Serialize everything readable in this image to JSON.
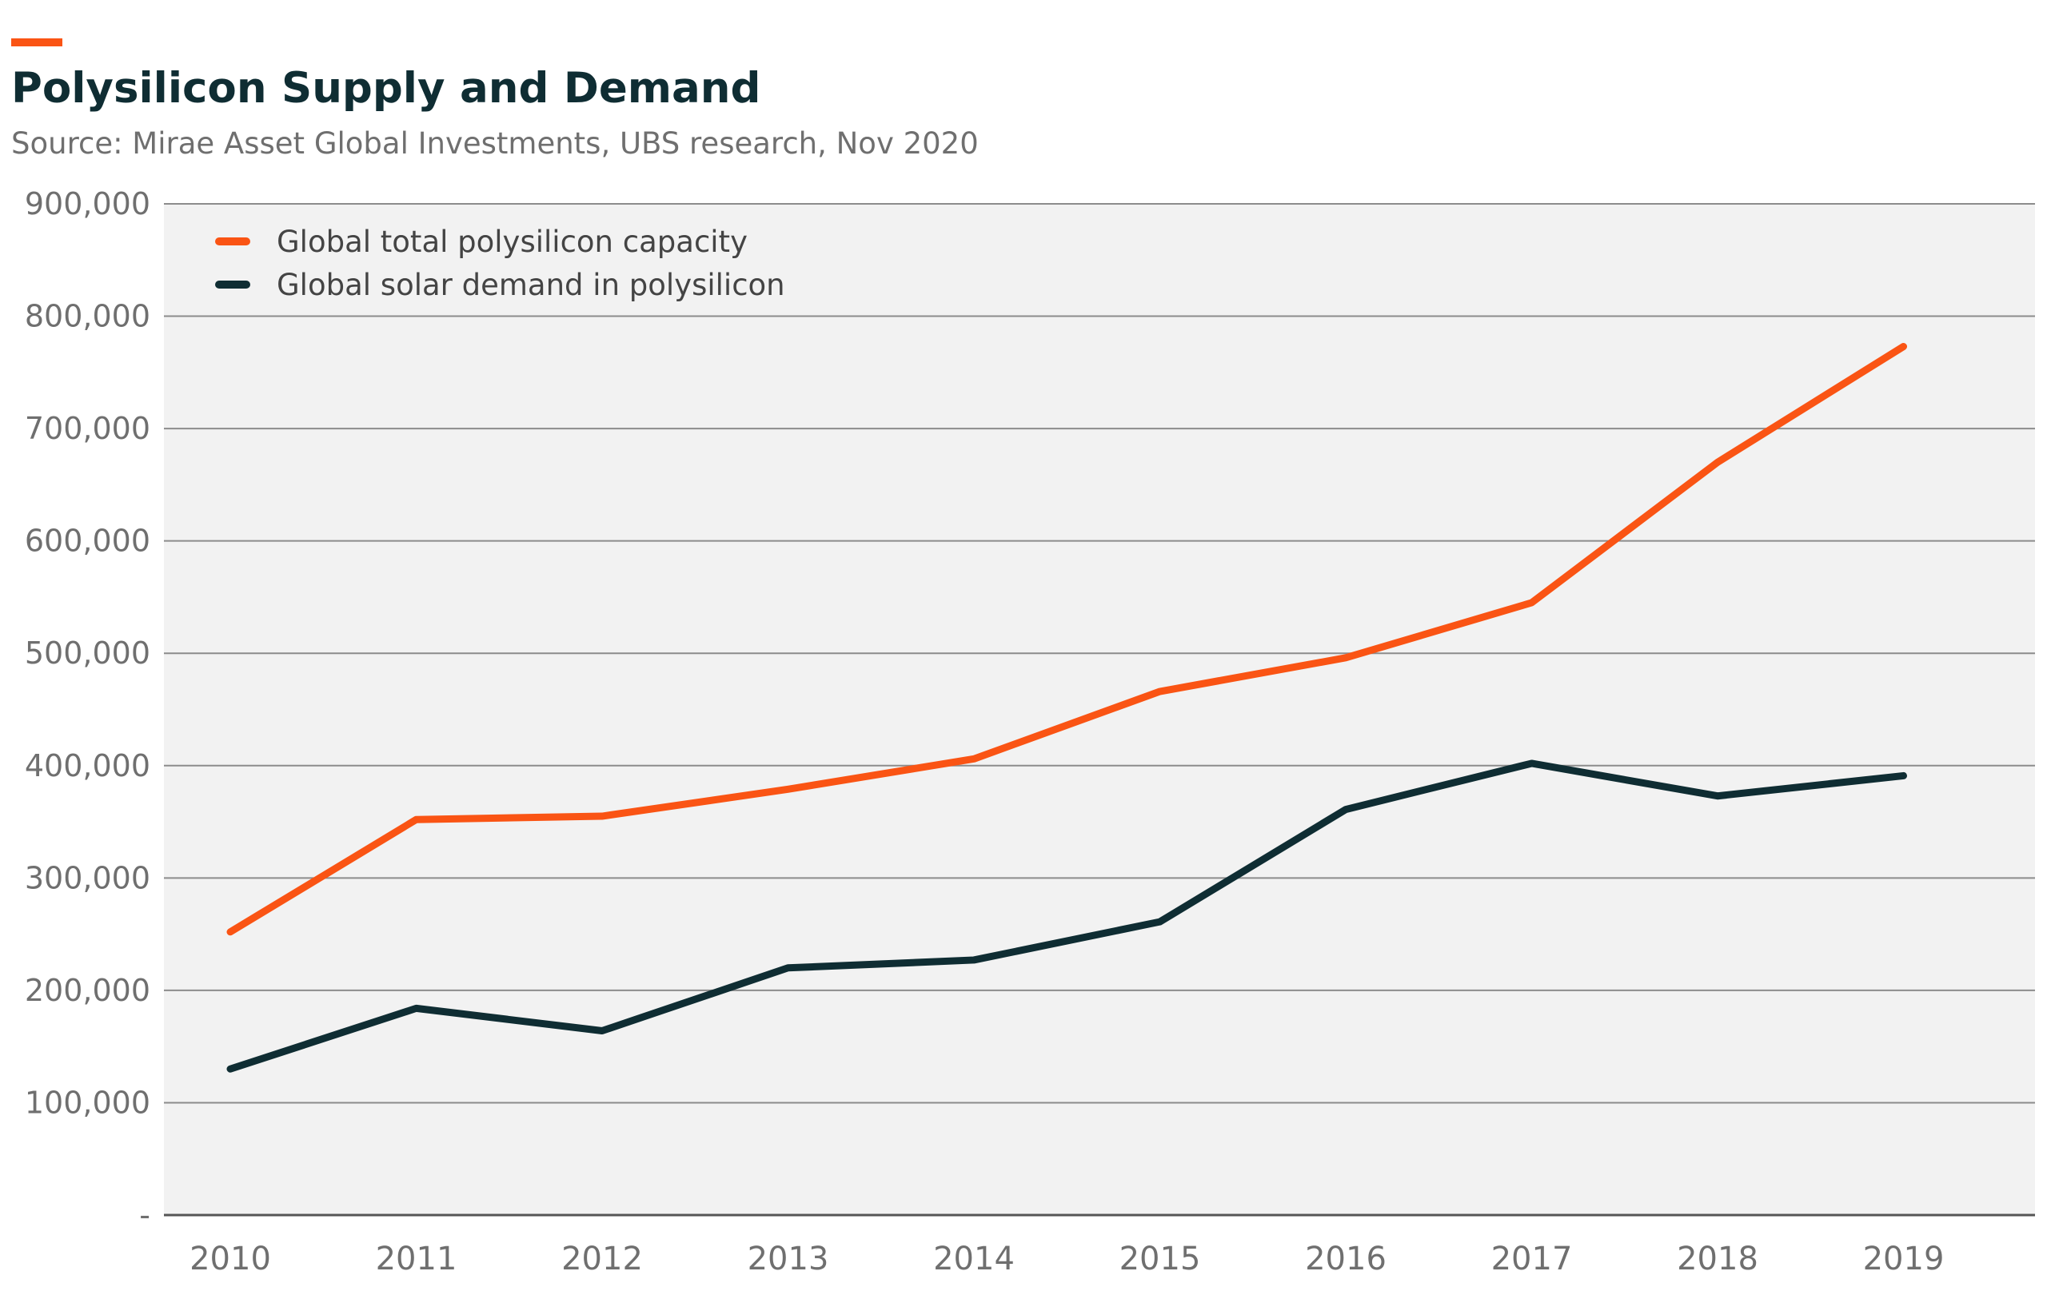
{
  "header": {
    "title": "Polysilicon Supply and Demand",
    "subtitle": "Source: Mirae Asset Global Investments, UBS research, Nov 2020"
  },
  "colors": {
    "accent": "#fa5414",
    "dark": "#0f2d33",
    "plot_background": "#f2f2f2",
    "gridline": "#8c8c8c",
    "tick_text": "#6f6f6f"
  },
  "chart_data": {
    "type": "line",
    "title": "Polysilicon Supply and Demand",
    "subtitle": "Source: Mirae Asset Global Investments, UBS research, Nov 2020",
    "xlabel": "",
    "ylabel": "",
    "categories": [
      "2010",
      "2011",
      "2012",
      "2013",
      "2014",
      "2015",
      "2016",
      "2017",
      "2018",
      "2019"
    ],
    "ylim": [
      0,
      900000
    ],
    "yticks": [
      0,
      100000,
      200000,
      300000,
      400000,
      500000,
      600000,
      700000,
      800000,
      900000
    ],
    "ytick_labels": [
      "-",
      "100,000",
      "200,000",
      "300,000",
      "400,000",
      "500,000",
      "600,000",
      "700,000",
      "800,000",
      "900,000"
    ],
    "grid": true,
    "legend_position": "top-left",
    "series": [
      {
        "name": "Global total polysilicon capacity",
        "color": "#fa5414",
        "values": [
          252000,
          352000,
          355000,
          379000,
          406000,
          466000,
          496000,
          545000,
          670000,
          773000
        ]
      },
      {
        "name": "Global solar demand in polysilicon",
        "color": "#0f2d33",
        "values": [
          130000,
          184000,
          164000,
          220000,
          227000,
          261000,
          361000,
          402000,
          373000,
          391000
        ]
      }
    ]
  }
}
